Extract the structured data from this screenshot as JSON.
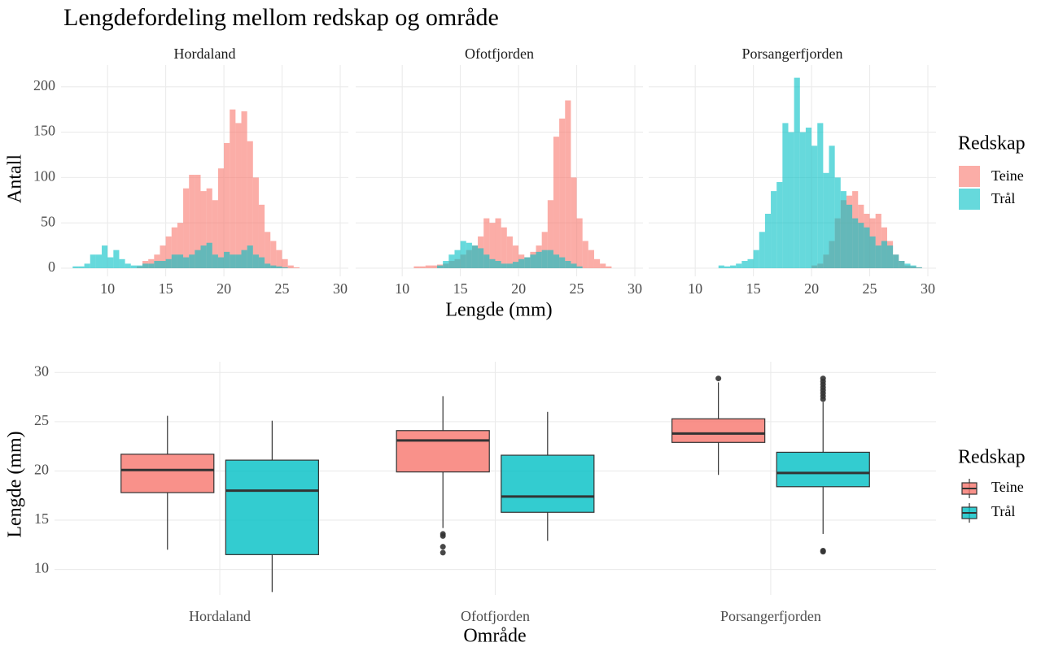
{
  "chart_data": [
    {
      "type": "histogram",
      "title": "Lengdefordeling mellom redskap og område",
      "xlabel": "Lengde (mm)",
      "ylabel": "Antall",
      "legend_title": "Redskap",
      "bins": [
        7,
        7.5,
        8,
        8.5,
        9,
        9.5,
        10,
        10.5,
        11,
        11.5,
        12,
        12.5,
        13,
        13.5,
        14,
        14.5,
        15,
        15.5,
        16,
        16.5,
        17,
        17.5,
        18,
        18.5,
        19,
        19.5,
        20,
        20.5,
        21,
        21.5,
        22,
        22.5,
        23,
        23.5,
        24,
        24.5,
        25,
        25.5,
        26,
        26.5,
        27,
        27.5,
        28,
        28.5,
        29,
        29.5,
        30
      ],
      "xlim": [
        6,
        30.7
      ],
      "ylim": [
        -9,
        224
      ],
      "xticks": [
        10,
        15,
        20,
        25,
        30
      ],
      "yticks": [
        0,
        50,
        100,
        150,
        200
      ],
      "grid": true,
      "facets": [
        {
          "name": "Hordaland",
          "series": [
            {
              "name": "Teine",
              "color": "#F8766D",
              "values": [
                0,
                0,
                0,
                0,
                0,
                0,
                0,
                0,
                0,
                0,
                0,
                2,
                8,
                10,
                15,
                25,
                35,
                45,
                50,
                88,
                103,
                103,
                85,
                88,
                75,
                110,
                138,
                175,
                160,
                173,
                140,
                100,
                70,
                40,
                30,
                20,
                10,
                3,
                1,
                0,
                0,
                0,
                0,
                0,
                0,
                0
              ]
            },
            {
              "name": "Trål",
              "color": "#00BFC4",
              "values": [
                2,
                2,
                5,
                15,
                15,
                25,
                12,
                20,
                10,
                5,
                3,
                3,
                5,
                5,
                8,
                8,
                10,
                15,
                15,
                12,
                15,
                20,
                25,
                28,
                15,
                12,
                18,
                15,
                15,
                20,
                25,
                15,
                12,
                5,
                3,
                2,
                1,
                0,
                0,
                0,
                0,
                0,
                0,
                0,
                0,
                0
              ]
            }
          ]
        },
        {
          "name": "Ofotfjorden",
          "series": [
            {
              "name": "Teine",
              "color": "#F8766D",
              "values": [
                0,
                0,
                0,
                0,
                0,
                0,
                0,
                0,
                2,
                2,
                3,
                3,
                4,
                5,
                8,
                10,
                15,
                20,
                25,
                35,
                55,
                50,
                55,
                45,
                35,
                25,
                15,
                12,
                18,
                25,
                40,
                75,
                145,
                165,
                185,
                100,
                55,
                30,
                20,
                10,
                5,
                2,
                0,
                0,
                0,
                0
              ]
            },
            {
              "name": "Trål",
              "color": "#00BFC4",
              "values": [
                0,
                0,
                0,
                0,
                0,
                0,
                0,
                0,
                0,
                0,
                0,
                0,
                3,
                8,
                15,
                20,
                30,
                28,
                25,
                22,
                15,
                10,
                8,
                5,
                5,
                7,
                10,
                12,
                15,
                18,
                20,
                20,
                15,
                12,
                8,
                5,
                2,
                0,
                0,
                0,
                0,
                0,
                0,
                0,
                0,
                0
              ]
            }
          ]
        },
        {
          "name": "Porsangerfjorden",
          "series": [
            {
              "name": "Teine",
              "color": "#F8766D",
              "values": [
                0,
                0,
                0,
                0,
                0,
                0,
                0,
                0,
                0,
                0,
                0,
                0,
                0,
                0,
                0,
                0,
                0,
                0,
                0,
                0,
                0,
                0,
                0,
                0,
                0,
                0,
                3,
                5,
                15,
                30,
                55,
                75,
                80,
                85,
                70,
                60,
                55,
                60,
                45,
                30,
                15,
                8,
                3,
                2,
                1,
                0
              ]
            },
            {
              "name": "Trål",
              "color": "#00BFC4",
              "values": [
                0,
                0,
                0,
                0,
                0,
                0,
                0,
                0,
                0,
                0,
                3,
                2,
                3,
                5,
                8,
                10,
                20,
                40,
                60,
                85,
                95,
                160,
                150,
                210,
                150,
                155,
                135,
                160,
                105,
                135,
                100,
                85,
                70,
                55,
                50,
                45,
                35,
                25,
                30,
                25,
                15,
                8,
                5,
                3,
                1,
                0
              ]
            }
          ]
        }
      ]
    },
    {
      "type": "boxplot",
      "xlabel": "Område",
      "ylabel": "Lengde (mm)",
      "legend_title": "Redskap",
      "categories": [
        "Hordaland",
        "Ofotfjorden",
        "Porsangerfjorden"
      ],
      "ylim": [
        7.4,
        31.1
      ],
      "yticks": [
        10,
        15,
        20,
        25,
        30
      ],
      "grid": true,
      "series": [
        {
          "name": "Teine",
          "color": "#F8766D",
          "boxes": [
            {
              "low": 12.0,
              "q1": 17.8,
              "median": 20.1,
              "q3": 21.7,
              "high": 25.6,
              "outliers": []
            },
            {
              "low": 14.2,
              "q1": 19.9,
              "median": 23.1,
              "q3": 24.1,
              "high": 27.6,
              "outliers": [
                13.6,
                13.4,
                12.3,
                11.7
              ]
            },
            {
              "low": 19.6,
              "q1": 22.9,
              "median": 23.8,
              "q3": 25.3,
              "high": 29.0,
              "outliers": [
                29.4
              ]
            }
          ]
        },
        {
          "name": "Trål",
          "color": "#00BFC4",
          "boxes": [
            {
              "low": 7.7,
              "q1": 11.5,
              "median": 18.0,
              "q3": 21.1,
              "high": 25.1,
              "outliers": []
            },
            {
              "low": 12.9,
              "q1": 15.8,
              "median": 17.4,
              "q3": 21.6,
              "high": 26.0,
              "outliers": []
            },
            {
              "low": 13.6,
              "q1": 18.4,
              "median": 19.8,
              "q3": 21.9,
              "high": 27.0,
              "outliers": [
                27.3,
                27.6,
                27.9,
                28.2,
                28.5,
                28.8,
                29.1,
                29.4,
                11.9,
                11.8
              ]
            }
          ]
        }
      ]
    }
  ]
}
